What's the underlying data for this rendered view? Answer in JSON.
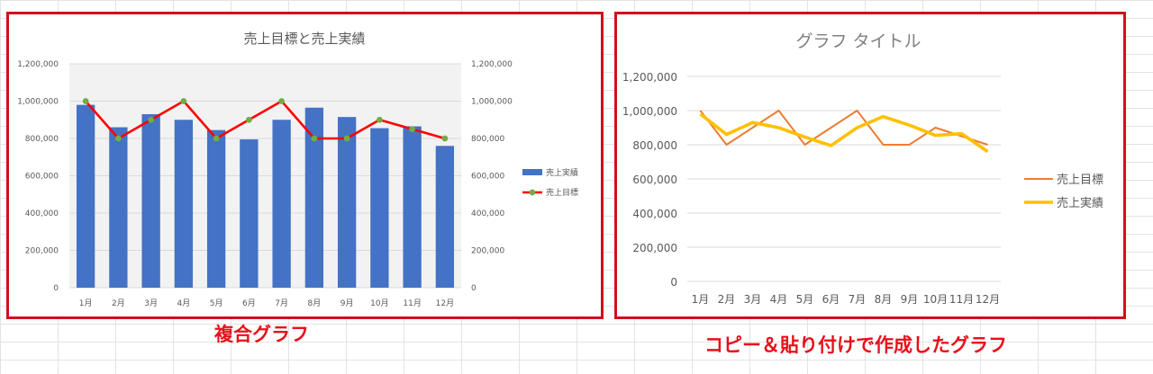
{
  "colors": {
    "frame": "#d0101b",
    "caption": "#e8101a",
    "bar": "#4472c4",
    "target_line": "#ff0000",
    "target_marker": "#70ad47",
    "orange_line": "#ed7d31",
    "yellow_line": "#ffc000",
    "plot_bg": "#f2f2f2"
  },
  "captions": {
    "left": "複合グラフ",
    "right": "コピー＆貼り付けで作成したグラフ"
  },
  "chart_data": [
    {
      "type": "bar",
      "title": "売上目標と売上実績",
      "categories": [
        "1月",
        "2月",
        "3月",
        "4月",
        "5月",
        "6月",
        "7月",
        "8月",
        "9月",
        "10月",
        "11月",
        "12月"
      ],
      "series": [
        {
          "name": "売上実績",
          "type": "bar",
          "axis": "left",
          "values": [
            980000,
            860000,
            930000,
            900000,
            845000,
            795000,
            900000,
            965000,
            915000,
            855000,
            865000,
            760000
          ]
        },
        {
          "name": "売上目標",
          "type": "line",
          "axis": "right",
          "values": [
            1000000,
            800000,
            900000,
            1000000,
            800000,
            900000,
            1000000,
            800000,
            800000,
            900000,
            850000,
            800000
          ]
        }
      ],
      "ylim": [
        0,
        1200000
      ],
      "y2lim": [
        0,
        1200000
      ],
      "yticks": [
        "0",
        "200,000",
        "400,000",
        "600,000",
        "800,000",
        "1,000,000",
        "1,200,000"
      ],
      "legend": "right",
      "grid": true
    },
    {
      "type": "line",
      "title": "グラフ タイトル",
      "categories": [
        "1月",
        "2月",
        "3月",
        "4月",
        "5月",
        "6月",
        "7月",
        "8月",
        "9月",
        "10月",
        "11月",
        "12月"
      ],
      "series": [
        {
          "name": "売上目標",
          "values": [
            1000000,
            800000,
            900000,
            1000000,
            800000,
            900000,
            1000000,
            800000,
            800000,
            900000,
            850000,
            800000
          ]
        },
        {
          "name": "売上実績",
          "values": [
            980000,
            860000,
            930000,
            900000,
            845000,
            795000,
            900000,
            965000,
            915000,
            855000,
            865000,
            760000
          ]
        }
      ],
      "ylim": [
        0,
        1200000
      ],
      "yticks": [
        "0",
        "200,000",
        "400,000",
        "600,000",
        "800,000",
        "1,000,000",
        "1,200,000"
      ],
      "legend": "right",
      "grid": true
    }
  ]
}
